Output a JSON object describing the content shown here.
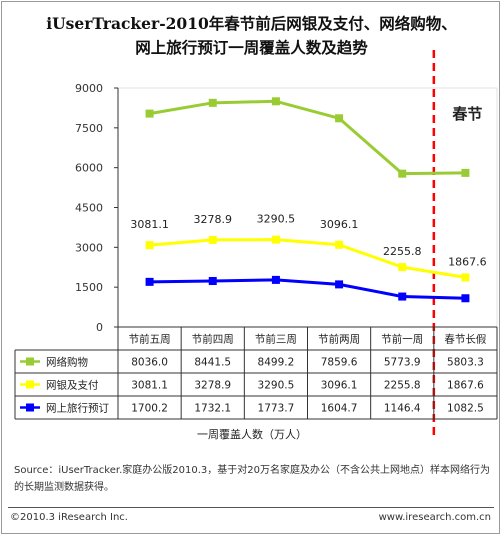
{
  "chart_data": {
    "type": "line",
    "title_line1": "iUserTracker-2010年春节前后网银及支付、网络购物、",
    "title_line2": "网上旅行预订一周覆盖人数及趋势",
    "categories": [
      "节前五周",
      "节前四周",
      "节前三周",
      "节前两周",
      "节前一周",
      "春节长假"
    ],
    "series": [
      {
        "name": "网络购物",
        "values": [
          8036.0,
          8441.5,
          8499.2,
          7859.6,
          5773.9,
          5803.3
        ],
        "color": "#99cc33",
        "display": [
          "8036.0",
          "8441.5",
          "8499.2",
          "7859.6",
          "5773.9",
          "5803.3"
        ]
      },
      {
        "name": "网银及支付",
        "values": [
          3081.1,
          3278.9,
          3290.5,
          3096.1,
          2255.8,
          1867.6
        ],
        "color": "#ffff00",
        "display": [
          "3081.1",
          "3278.9",
          "3290.5",
          "3096.1",
          "2255.8",
          "1867.6"
        ]
      },
      {
        "name": "网上旅行预订",
        "values": [
          1700.2,
          1732.1,
          1773.7,
          1604.7,
          1146.4,
          1082.5
        ],
        "color": "#0000ff",
        "display": [
          "1700.2",
          "1732.1",
          "1773.7",
          "1604.7",
          "1146.4",
          "1082.5"
        ]
      }
    ],
    "data_label_series": 1,
    "yticks": [
      0,
      1500,
      3000,
      4500,
      6000,
      7500,
      9000
    ],
    "ylim": [
      0,
      9000
    ],
    "xlabel": "一周覆盖人数（万人）",
    "annotation": "春节",
    "marker_color": "#ff0000",
    "grid": false
  },
  "source": "Source：iUserTracker.家庭办公版2010.3，基于对20万名家庭及办公（不含公共上网地点）样本网络行为的长期监测数据获得。",
  "footer": {
    "copyright": "©2010.3 iResearch Inc.",
    "website": "www.iresearch.com.cn"
  }
}
